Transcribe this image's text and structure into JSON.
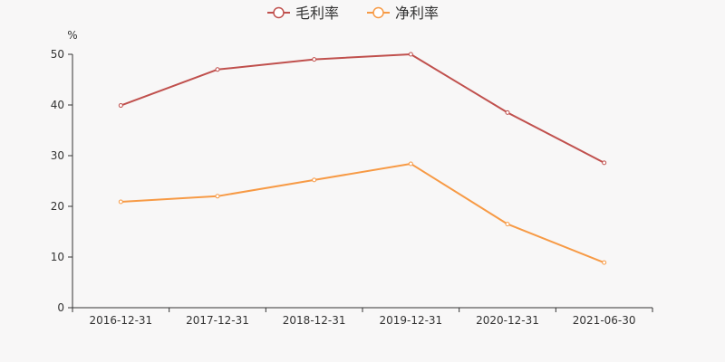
{
  "chart_data": {
    "type": "line",
    "title": "",
    "xlabel": "",
    "ylabel": "%",
    "categories": [
      "2016-12-31",
      "2017-12-31",
      "2018-12-31",
      "2019-12-31",
      "2020-12-31",
      "2021-06-30"
    ],
    "ylim": [
      0,
      50
    ],
    "yticks": [
      "0",
      "10",
      "20",
      "30",
      "40",
      "50"
    ],
    "grid": false,
    "legend_position": "top-center",
    "series": [
      {
        "name": "毛利率",
        "color": "#c0504d",
        "values": [
          39.9,
          47.0,
          49.0,
          50.0,
          38.5,
          28.6
        ]
      },
      {
        "name": "净利率",
        "color": "#f79a45",
        "values": [
          20.9,
          22.0,
          25.2,
          28.4,
          16.5,
          8.9
        ]
      }
    ]
  }
}
